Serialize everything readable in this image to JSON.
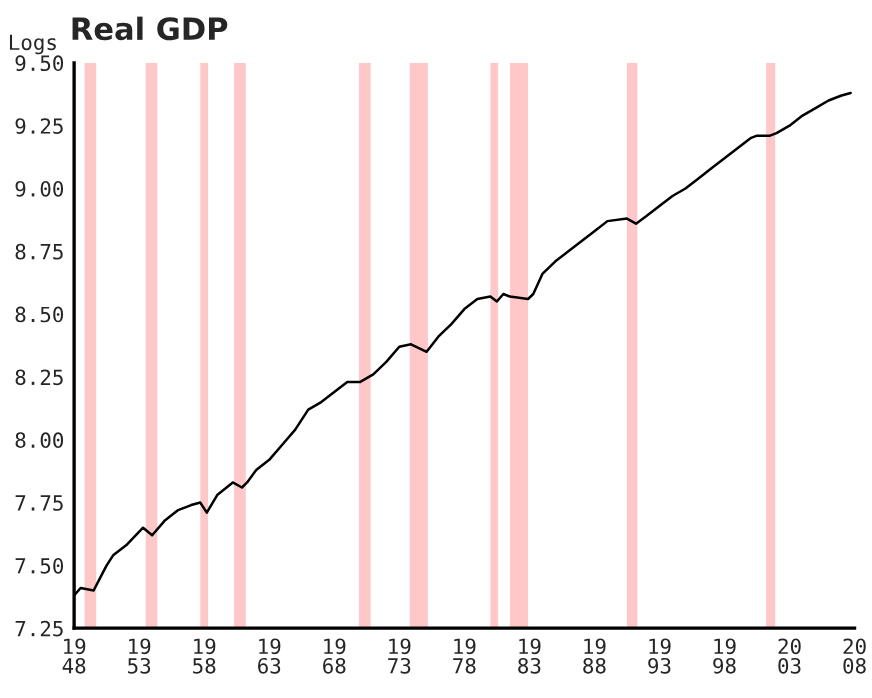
{
  "chart_data": {
    "type": "line",
    "title": "Real GDP",
    "ylabel": "Logs",
    "x": [
      1948,
      1948.5,
      1949.5,
      1950,
      1950.5,
      1951,
      1952,
      1953.3,
      1954,
      1955,
      1956,
      1957,
      1957.7,
      1958.2,
      1959,
      1960.2,
      1960.9,
      1961.3,
      1962,
      1963,
      1964,
      1965,
      1966,
      1967,
      1968,
      1969,
      1970,
      1971,
      1972,
      1973,
      1973.9,
      1975.1,
      1976,
      1977,
      1978,
      1979,
      1980,
      1980.5,
      1981,
      1981.5,
      1982.9,
      1983.3,
      1984,
      1985,
      1986,
      1987,
      1988,
      1989,
      1990.5,
      1991.2,
      1992,
      1993,
      1994,
      1995,
      1996,
      1997,
      1998,
      1999,
      2000,
      2000.5,
      2001.5,
      2002,
      2003,
      2004,
      2005,
      2006,
      2007,
      2007.7
    ],
    "series": [
      {
        "color": "#000000",
        "values": [
          7.38,
          7.41,
          7.4,
          7.45,
          7.5,
          7.54,
          7.58,
          7.65,
          7.62,
          7.68,
          7.72,
          7.74,
          7.75,
          7.71,
          7.78,
          7.83,
          7.81,
          7.83,
          7.88,
          7.92,
          7.98,
          8.04,
          8.12,
          8.15,
          8.19,
          8.23,
          8.23,
          8.26,
          8.31,
          8.37,
          8.38,
          8.35,
          8.41,
          8.46,
          8.52,
          8.56,
          8.57,
          8.55,
          8.58,
          8.57,
          8.56,
          8.58,
          8.66,
          8.71,
          8.75,
          8.79,
          8.83,
          8.87,
          8.88,
          8.86,
          8.89,
          8.93,
          8.97,
          9.0,
          9.04,
          9.08,
          9.12,
          9.16,
          9.2,
          9.21,
          9.21,
          9.22,
          9.25,
          9.29,
          9.32,
          9.35,
          9.37,
          9.38
        ]
      }
    ],
    "xlim": [
      1948,
      2008
    ],
    "xticks": [
      1948,
      1953,
      1958,
      1963,
      1968,
      1973,
      1978,
      1983,
      1988,
      1993,
      1998,
      2003,
      2008
    ],
    "ylim": [
      7.25,
      9.5
    ],
    "yticks": [
      {
        "value": 7.25,
        "label": "7.25"
      },
      {
        "value": 7.5,
        "label": "7.50"
      },
      {
        "value": 7.75,
        "label": "7.75"
      },
      {
        "value": 8.0,
        "label": "8.00"
      },
      {
        "value": 8.25,
        "label": "8.25"
      },
      {
        "value": 8.5,
        "label": "8.50"
      },
      {
        "value": 8.75,
        "label": "8.75"
      },
      {
        "value": 9.0,
        "label": "9.00"
      },
      {
        "value": 9.25,
        "label": "9.25"
      },
      {
        "value": 9.5,
        "label": "9.50"
      }
    ],
    "bands": [
      {
        "axis": "x",
        "from": 1948.8,
        "to": 1949.7,
        "color": "#ffc8c8"
      },
      {
        "axis": "x",
        "from": 1953.5,
        "to": 1954.4,
        "color": "#ffc8c8"
      },
      {
        "axis": "x",
        "from": 1957.7,
        "to": 1958.3,
        "color": "#ffc8c8"
      },
      {
        "axis": "x",
        "from": 1960.3,
        "to": 1961.2,
        "color": "#ffc8c8"
      },
      {
        "axis": "x",
        "from": 1969.9,
        "to": 1970.8,
        "color": "#ffc8c8"
      },
      {
        "axis": "x",
        "from": 1973.8,
        "to": 1975.2,
        "color": "#ffc8c8"
      },
      {
        "axis": "x",
        "from": 1980.0,
        "to": 1980.6,
        "color": "#ffc8c8"
      },
      {
        "axis": "x",
        "from": 1981.5,
        "to": 1982.9,
        "color": "#ffc8c8"
      },
      {
        "axis": "x",
        "from": 1990.5,
        "to": 1991.3,
        "color": "#ffc8c8"
      },
      {
        "axis": "x",
        "from": 2001.2,
        "to": 2001.9,
        "color": "#ffc8c8"
      }
    ],
    "grid": false,
    "legend": false,
    "marker": "none",
    "line_style": "solid"
  }
}
